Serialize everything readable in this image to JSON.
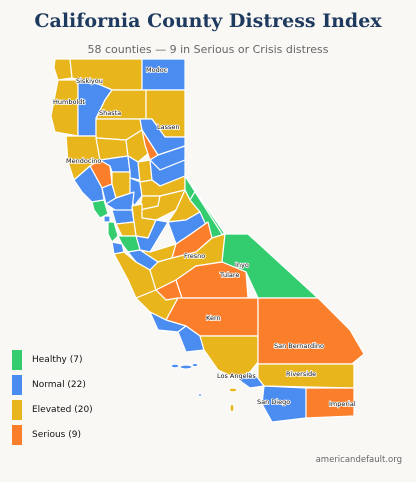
{
  "title": "California County Distress Index",
  "subtitle": "58 counties — 9 in Serious or Crisis distress",
  "colors": {
    "healthy": "#33cc6e",
    "normal": "#4a8cf0",
    "elevated": "#e9b51d",
    "serious": "#fb7f2b"
  },
  "legend": [
    {
      "key": "healthy",
      "label": "Healthy (7)"
    },
    {
      "key": "normal",
      "label": "Normal (22)"
    },
    {
      "key": "elevated",
      "label": "Elevated (20)"
    },
    {
      "key": "serious",
      "label": "Serious (9)"
    }
  ],
  "counties": [
    {
      "name": "Siskiyou",
      "status": "elevated"
    },
    {
      "name": "Modoc",
      "status": "normal"
    },
    {
      "name": "Humboldt",
      "status": "elevated"
    },
    {
      "name": "Shasta",
      "status": "elevated"
    },
    {
      "name": "Lassen",
      "status": "elevated"
    },
    {
      "name": "Mendocino",
      "status": "elevated"
    },
    {
      "name": "Fresno",
      "status": "elevated"
    },
    {
      "name": "Inyo",
      "status": "healthy"
    },
    {
      "name": "Tulare",
      "status": "serious"
    },
    {
      "name": "Kern",
      "status": "serious"
    },
    {
      "name": "San Bernardino",
      "status": "serious"
    },
    {
      "name": "Los Angeles",
      "status": "elevated"
    },
    {
      "name": "Riverside",
      "status": "elevated"
    },
    {
      "name": "San Diego",
      "status": "normal"
    },
    {
      "name": "Imperial",
      "status": "serious"
    }
  ],
  "credit": "americandefault.org"
}
